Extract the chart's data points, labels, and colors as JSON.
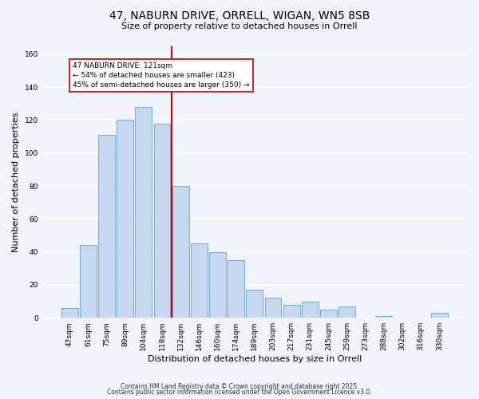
{
  "title": "47, NABURN DRIVE, ORRELL, WIGAN, WN5 8SB",
  "subtitle": "Size of property relative to detached houses in Orrell",
  "xlabel": "Distribution of detached houses by size in Orrell",
  "ylabel": "Number of detached properties",
  "bar_color": "#c5d8f0",
  "bar_edge_color": "#7ab0d4",
  "background_color": "#f0f4fa",
  "grid_color": "#ffffff",
  "categories": [
    "47sqm",
    "61sqm",
    "75sqm",
    "89sqm",
    "104sqm",
    "118sqm",
    "132sqm",
    "146sqm",
    "160sqm",
    "174sqm",
    "189sqm",
    "203sqm",
    "217sqm",
    "231sqm",
    "245sqm",
    "259sqm",
    "273sqm",
    "288sqm",
    "302sqm",
    "316sqm",
    "330sqm"
  ],
  "values": [
    6,
    44,
    111,
    120,
    128,
    118,
    80,
    45,
    40,
    35,
    17,
    12,
    8,
    10,
    5,
    7,
    0,
    1,
    0,
    0,
    3
  ],
  "vline_x": 5.5,
  "vline_color": "#cc0000",
  "annotation_text": "47 NABURN DRIVE: 121sqm\n← 54% of detached houses are smaller (423)\n45% of semi-detached houses are larger (350) →",
  "ylim": [
    0,
    165
  ],
  "yticks": [
    0,
    20,
    40,
    60,
    80,
    100,
    120,
    140,
    160
  ],
  "title_fontsize": 10,
  "subtitle_fontsize": 8,
  "ylabel_fontsize": 8,
  "xlabel_fontsize": 8,
  "tick_fontsize": 6.5,
  "footer_line1": "Contains HM Land Registry data © Crown copyright and database right 2025.",
  "footer_line2": "Contains public sector information licensed under the Open Government Licence v3.0."
}
